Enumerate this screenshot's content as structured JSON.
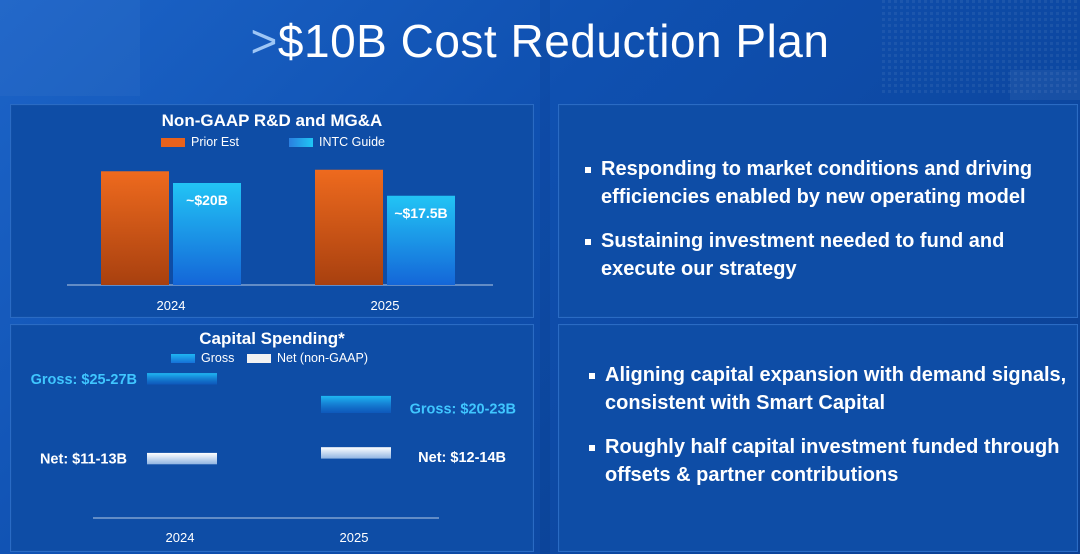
{
  "title_prefix": ">",
  "title_main": "$10B Cost Reduction Plan",
  "colors": {
    "prior_est": "#e8621c",
    "intc_guide": "#1fb2f0",
    "gross": "#1fa6ee",
    "net": "#f2f2f2",
    "panel": "#0e4da6"
  },
  "chart_data": [
    {
      "type": "bar",
      "title": "Non-GAAP R&D and MG&A",
      "categories": [
        "2024",
        "2025"
      ],
      "series": [
        {
          "name": "Prior Est",
          "values": [
            22.3,
            22.6
          ]
        },
        {
          "name": "INTC Guide",
          "values": [
            20,
            17.5
          ],
          "labels": [
            "~$20B",
            "~$17.5B"
          ]
        }
      ],
      "legend_position": "top",
      "grid": false
    },
    {
      "type": "bar",
      "title": "Capital Spending*",
      "categories": [
        "2024",
        "2025"
      ],
      "series": [
        {
          "name": "Gross",
          "ranges": [
            [
              25,
              27
            ],
            [
              20,
              23
            ]
          ],
          "labels": [
            "Gross: $25-27B",
            "Gross: $20-23B"
          ]
        },
        {
          "name": "Net (non-GAAP)",
          "ranges": [
            [
              11,
              13
            ],
            [
              12,
              14
            ]
          ],
          "labels": [
            "Net: $11-13B",
            "Net: $12-14B"
          ]
        }
      ],
      "legend_position": "top",
      "grid": false
    }
  ],
  "bullets_top": [
    "Responding to market conditions and driving efficiencies enabled by new operating model",
    "Sustaining investment needed to fund and execute our strategy"
  ],
  "bullets_bottom": [
    "Aligning capital expansion with demand signals, consistent with Smart Capital",
    "Roughly half capital investment funded through offsets & partner contributions"
  ]
}
